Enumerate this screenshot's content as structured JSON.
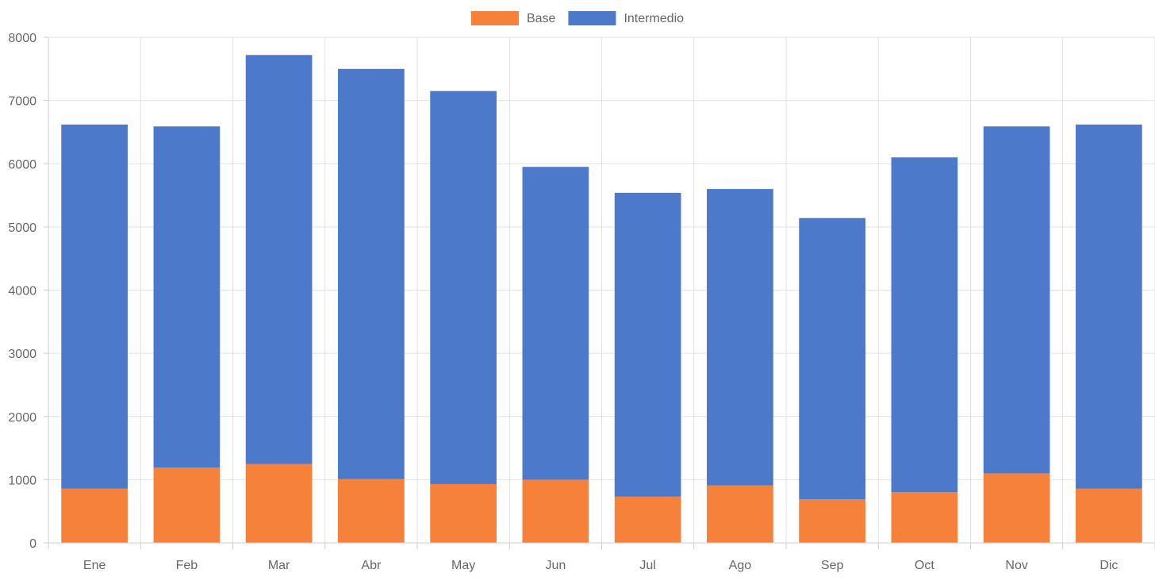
{
  "chart_data": {
    "type": "bar",
    "stacked": true,
    "categories": [
      "Ene",
      "Feb",
      "Mar",
      "Abr",
      "May",
      "Jun",
      "Jul",
      "Ago",
      "Sep",
      "Oct",
      "Nov",
      "Dic"
    ],
    "series": [
      {
        "name": "Base",
        "color": "#f5813a",
        "values": [
          860,
          1190,
          1250,
          1010,
          930,
          1000,
          730,
          910,
          690,
          800,
          1100,
          860
        ]
      },
      {
        "name": "Intermedio",
        "color": "#4d79ca",
        "values": [
          5760,
          5400,
          6470,
          6490,
          6220,
          4950,
          4810,
          4690,
          4450,
          5300,
          5490,
          5760
        ]
      }
    ],
    "ylim": [
      0,
      8000
    ],
    "yticks": [
      "0",
      "1000",
      "2000",
      "3000",
      "4000",
      "5000",
      "6000",
      "7000",
      "8000"
    ],
    "grid": true,
    "legend_position": "top-center"
  }
}
